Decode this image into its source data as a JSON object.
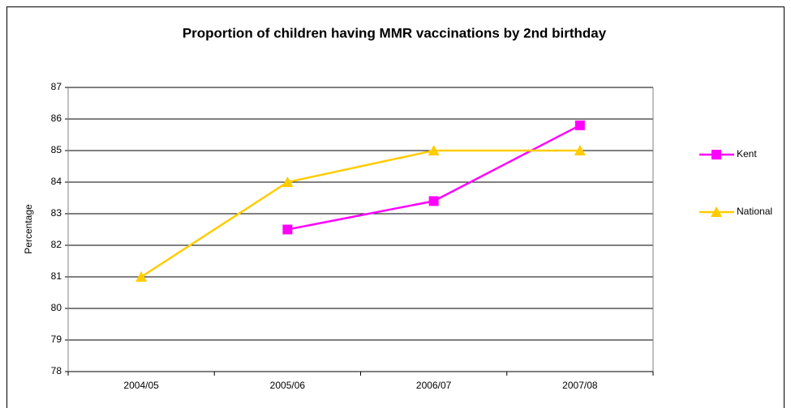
{
  "chart_data": {
    "type": "line",
    "title": "Proportion of children having MMR vaccinations by 2nd birthday",
    "y_label": "Percentage",
    "categories": [
      "2004/05",
      "2005/06",
      "2006/07",
      "2007/08"
    ],
    "series": [
      {
        "name": "Kent",
        "color": "#ff00ff",
        "marker": "square",
        "values": [
          null,
          82.5,
          83.4,
          85.8
        ]
      },
      {
        "name": "National",
        "color": "#ffcc00",
        "marker": "triangle",
        "values": [
          81,
          84,
          85,
          85
        ]
      }
    ],
    "ylim": [
      78,
      87
    ],
    "yticks": [
      78,
      79,
      80,
      81,
      82,
      83,
      84,
      85,
      86,
      87
    ],
    "grid": true,
    "legend": "right"
  }
}
